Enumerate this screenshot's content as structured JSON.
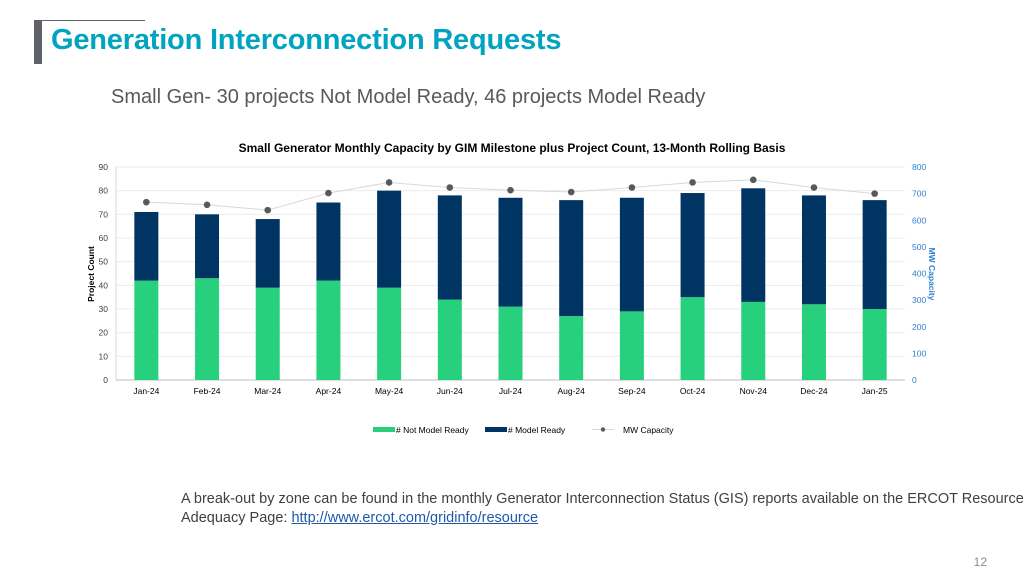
{
  "slide": {
    "title": "Generation Interconnection Requests",
    "subtitle": "Small Gen- 30 projects Not Model Ready, 46 projects Model Ready",
    "note_text": "A break-out by zone can be found in the monthly Generator Interconnection Status (GIS) reports available on the ERCOT Resource Adequacy Page: ",
    "note_link": "http://www.ercot.com/gridinfo/resource",
    "page_number": "12"
  },
  "chart_data": {
    "type": "bar",
    "stacked": true,
    "title": "Small Generator Monthly Capacity by GIM Milestone plus Project Count, 13-Month Rolling Basis",
    "xlabel": "",
    "ylabel": "Project Count",
    "y2label": "MW Capacity",
    "ylim": [
      0,
      90
    ],
    "y2lim": [
      0,
      800
    ],
    "yticks": [
      0,
      10,
      20,
      30,
      40,
      50,
      60,
      70,
      80,
      90
    ],
    "y2ticks": [
      0,
      100,
      200,
      300,
      400,
      500,
      600,
      700,
      800
    ],
    "grid": true,
    "legend": "bottom",
    "categories": [
      "Jan-24",
      "Feb-24",
      "Mar-24",
      "Apr-24",
      "May-24",
      "Jun-24",
      "Jul-24",
      "Aug-24",
      "Sep-24",
      "Oct-24",
      "Nov-24",
      "Dec-24",
      "Jan-25"
    ],
    "series": [
      {
        "name": "# Not Model Ready",
        "type": "bar",
        "axis": "left",
        "color": "#27d07d",
        "values": [
          42,
          43,
          39,
          42,
          39,
          34,
          31,
          27,
          29,
          35,
          33,
          32,
          30
        ]
      },
      {
        "name": "# Model Ready",
        "type": "bar",
        "axis": "left",
        "color": "#003462",
        "values": [
          29,
          27,
          29,
          33,
          41,
          44,
          46,
          49,
          48,
          44,
          48,
          46,
          46
        ]
      },
      {
        "name": "MW Capacity",
        "type": "line",
        "axis": "right",
        "color": "#595959",
        "values": [
          668,
          658,
          638,
          702,
          742,
          723,
          713,
          706,
          723,
          742,
          752,
          723,
          700
        ]
      }
    ],
    "colors": {
      "left_axis": "#404040",
      "right_axis": "#2e7fd0",
      "grid": "#ececec"
    }
  }
}
